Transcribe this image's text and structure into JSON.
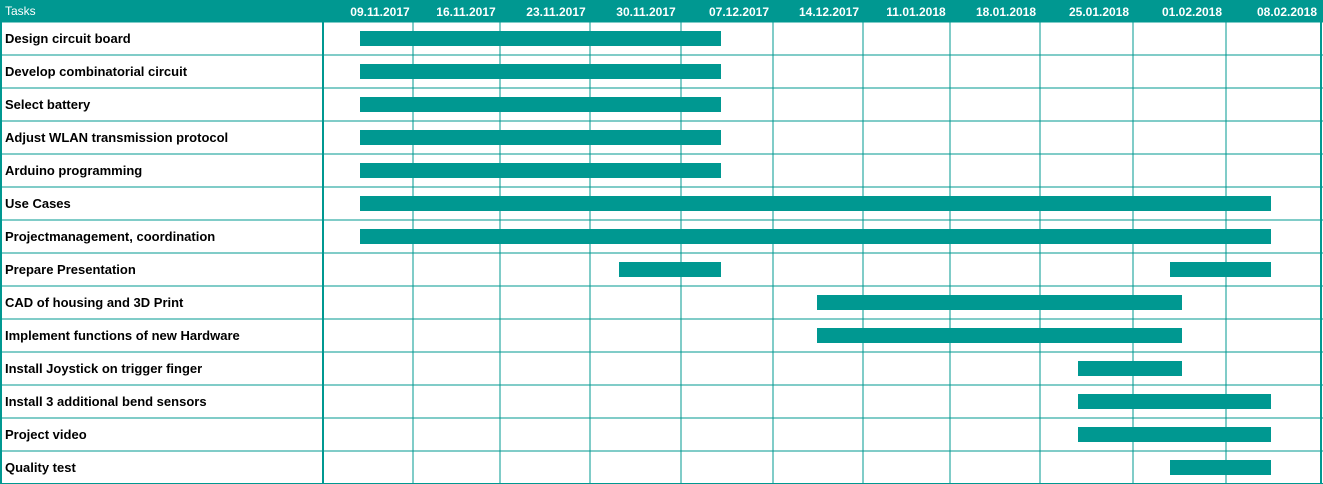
{
  "chart_data": {
    "type": "gantt",
    "header_label": "Tasks",
    "timeline": [
      "09.11.2017",
      "16.11.2017",
      "23.11.2017",
      "30.11.2017",
      "07.12.2017",
      "14.12.2017",
      "11.01.2018",
      "18.01.2018",
      "25.01.2018",
      "01.02.2018",
      "08.02.2018"
    ],
    "tasks": [
      {
        "name": "Design circuit board",
        "start": "09.11.2017",
        "end": "07.12.2017"
      },
      {
        "name": "Develop combinatorial circuit",
        "start": "09.11.2017",
        "end": "07.12.2017"
      },
      {
        "name": "Select battery",
        "start": "09.11.2017",
        "end": "07.12.2017"
      },
      {
        "name": "Adjust WLAN transmission protocol",
        "start": "09.11.2017",
        "end": "07.12.2017"
      },
      {
        "name": "Arduino programming",
        "start": "09.11.2017",
        "end": "07.12.2017"
      },
      {
        "name": "Use Cases",
        "start": "09.11.2017",
        "end": "08.02.2018"
      },
      {
        "name": "Projectmanagement, coordination",
        "start": "09.11.2017",
        "end": "08.02.2018"
      },
      {
        "name": "Prepare Presentation",
        "segments": [
          {
            "start": "30.11.2017",
            "end": "07.12.2017"
          },
          {
            "start": "01.02.2018",
            "end": "08.02.2018"
          }
        ]
      },
      {
        "name": "CAD of housing and 3D Print",
        "start": "14.12.2017",
        "end": "01.02.2018"
      },
      {
        "name": "Implement functions of new Hardware",
        "start": "14.12.2017",
        "end": "01.02.2018"
      },
      {
        "name": "Install Joystick on trigger finger",
        "start": "25.01.2018",
        "end": "01.02.2018"
      },
      {
        "name": "Install 3 additional bend sensors",
        "start": "25.01.2018",
        "end": "08.02.2018"
      },
      {
        "name": "Project video",
        "start": "25.01.2018",
        "end": "08.02.2018"
      },
      {
        "name": "Quality test",
        "start": "01.02.2018",
        "end": "08.02.2018"
      }
    ]
  },
  "colors": {
    "accent": "#009891",
    "bar": "#009891",
    "grid": "#009891",
    "header_text": "#ffffff",
    "label_text": "#000000"
  }
}
